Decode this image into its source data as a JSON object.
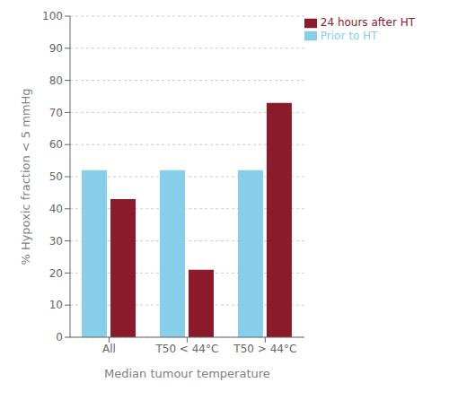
{
  "chart_data": {
    "type": "bar",
    "categories": [
      "All",
      "T50 < 44°C",
      "T50 > 44°C"
    ],
    "series": [
      {
        "name": "Prior to HT",
        "color": "#87CEEB",
        "values": [
          52,
          52,
          52
        ]
      },
      {
        "name": "24 hours after HT",
        "color": "#8B1A2A",
        "values": [
          43,
          21,
          73
        ]
      }
    ],
    "xlabel": "Median tumour temperature",
    "ylabel": "% Hypoxic fraction < 5 mmHg",
    "ylim": [
      0,
      100
    ],
    "yticks": [
      0,
      10,
      20,
      30,
      40,
      50,
      60,
      70,
      80,
      90,
      100
    ],
    "grid": true,
    "legend": "upper right"
  }
}
